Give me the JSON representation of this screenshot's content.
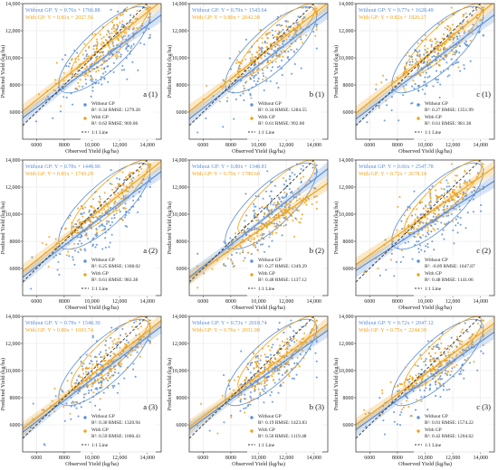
{
  "chart_data": [
    {
      "type": "scatter",
      "id": "a1",
      "panel_label": "a (1)",
      "eq_without": "Without GP: Y = 0.76x + 1766.88",
      "eq_with": "With GP: Y = 0.81x + 2027.56",
      "slope_without": 0.76,
      "intercept_without": 1766.88,
      "slope_with": 0.81,
      "intercept_with": 2027.56,
      "legend": {
        "without_label": "Without GP",
        "without_stats": "R²: 0.34  RMSE: 1279.28",
        "with_label": "With GP",
        "with_stats": "R²: 0.62  RMSE: 969.06",
        "line_label": "1:1 Line"
      },
      "xlabel": "Observed Yield (kg/ha)",
      "ylabel": "Predicted Yield (kg/ha)"
    },
    {
      "type": "scatter",
      "id": "b1",
      "panel_label": "b (1)",
      "eq_without": "Without GP: Y = 0.79x + 1543.64",
      "eq_with": "With GP: Y = 0.80x + 2042.38",
      "slope_without": 0.79,
      "intercept_without": 1543.64,
      "slope_with": 0.8,
      "intercept_with": 2042.38,
      "legend": {
        "without_label": "Without GP",
        "without_stats": "R²: 0.34  RMSE: 1284.55",
        "with_label": "With GP",
        "with_stats": "R²: 0.61  RMSE: 992.00",
        "line_label": "1:1 Line"
      },
      "xlabel": "Observed Yield (kg/ha)",
      "ylabel": "Predicted Yield (kg/ha)"
    },
    {
      "type": "scatter",
      "id": "c1",
      "panel_label": "c (1)",
      "eq_without": "Without GP: Y = 0.77x + 1628.49",
      "eq_with": "With GP: Y = 0.82x + 1820.27",
      "slope_without": 0.77,
      "intercept_without": 1628.49,
      "slope_with": 0.82,
      "intercept_with": 1820.27,
      "legend": {
        "without_label": "Without GP",
        "without_stats": "R²: 0.27  RMSE: 1351.99",
        "with_label": "With GP",
        "with_stats": "R²: 0.61  RMSE: 981.38",
        "line_label": "1:1 Line"
      },
      "xlabel": "Observed Yield (kg/ha)",
      "ylabel": "Predicted Yield (kg/ha)"
    },
    {
      "type": "scatter",
      "id": "a2",
      "panel_label": "a (2)",
      "eq_without": "Without GP: Y = 0.78x + 1449.96",
      "eq_with": "With GP: Y = 0.81x + 1743.29",
      "slope_without": 0.78,
      "intercept_without": 1449.96,
      "slope_with": 0.81,
      "intercept_with": 1743.29,
      "legend": {
        "without_label": "Without GP",
        "without_stats": "R²: 0.25  RMSE: 1368.02",
        "with_label": "With GP",
        "with_stats": "R²: 0.61  RMSE: 983.38",
        "line_label": "1:1 Line"
      },
      "xlabel": "Observed Yield (kg/ha)",
      "ylabel": "Predicted Yield (kg/ha)"
    },
    {
      "type": "scatter",
      "id": "b2",
      "panel_label": "b (2)",
      "eq_without": "Without GP: Y = 0.80x + 1348.81",
      "eq_with": "With GP: Y = 0.70x + 1780.60",
      "slope_without": 0.8,
      "intercept_without": 1348.81,
      "slope_with": 0.7,
      "intercept_with": 1780.6,
      "legend": {
        "without_label": "Without GP",
        "without_stats": "R²: 0.27  RMSE: 1349.29",
        "with_label": "With GP",
        "with_stats": "R²: 0.48  RMSE: 1137.12",
        "line_label": "1:1 Line"
      },
      "xlabel": "Observed Yield (kg/ha)",
      "ylabel": "Predicted Yield (kg/ha)"
    },
    {
      "type": "scatter",
      "id": "c2",
      "panel_label": "c (2)",
      "eq_without": "Without GP: Y = 0.66x + 2547.78",
      "eq_with": "With GP: Y = 0.72x + 2678.14",
      "slope_without": 0.66,
      "intercept_without": 2547.78,
      "slope_with": 0.72,
      "intercept_with": 2678.14,
      "legend": {
        "without_label": "Without GP",
        "without_stats": "R²: -0.09  RMSE: 1647.87",
        "with_label": "With GP",
        "with_stats": "R²: 0.48  RMSE: 1141.06",
        "line_label": "1:1 Line"
      },
      "xlabel": "Observed Yield (kg/ha)",
      "ylabel": "Predicted Yield (kg/ha)"
    },
    {
      "type": "scatter",
      "id": "a3",
      "panel_label": "a (3)",
      "eq_without": "Without GP: Y = 0.78x + 1548.30",
      "eq_with": "With GP: Y = 0.80x + 1693.74",
      "slope_without": 0.78,
      "intercept_without": 1548.3,
      "slope_with": 0.8,
      "intercept_with": 1693.74,
      "legend": {
        "without_label": "Without GP",
        "without_stats": "R²: 0.30  RMSE: 1320.94",
        "with_label": "With GP",
        "with_stats": "R²: 0.59  RMSE: 1006.43",
        "line_label": "1:1 Line"
      },
      "xlabel": "Observed Yield (kg/ha)",
      "ylabel": "Predicted Yield (kg/ha)"
    },
    {
      "type": "scatter",
      "id": "b3",
      "panel_label": "b (3)",
      "eq_without": "Without GP: Y = 0.73x + 2018.74",
      "eq_with": "With GP: Y = 0.76x + 2051.98",
      "slope_without": 0.73,
      "intercept_without": 2018.74,
      "slope_with": 0.76,
      "intercept_with": 2051.98,
      "legend": {
        "without_label": "Without GP",
        "without_stats": "R²: 0.19  RMSE: 1423.83",
        "with_label": "With GP",
        "with_stats": "R²: 0.50  RMSE: 1119.48",
        "line_label": "1:1 Line"
      },
      "xlabel": "Observed Yield (kg/ha)",
      "ylabel": "Predicted Yield (kg/ha)"
    },
    {
      "type": "scatter",
      "id": "c3",
      "panel_label": "c (3)",
      "eq_without": "Without GP: Y = 0.72x + 2047.12",
      "eq_with": "With GP: Y = 0.75x + 2244.39",
      "slope_without": 0.72,
      "intercept_without": 2047.12,
      "slope_with": 0.75,
      "intercept_with": 2244.39,
      "legend": {
        "without_label": "Without GP",
        "without_stats": "R²: 0.01  RMSE: 1574.22",
        "with_label": "With GP",
        "with_stats": "R²: 0.42  RMSE: 1204.62",
        "line_label": "1:1 Line"
      },
      "xlabel": "Observed Yield (kg/ha)",
      "ylabel": "Predicted Yield (kg/ha)"
    }
  ],
  "axes": {
    "xlim": [
      5000,
      15000
    ],
    "ylim": [
      4000,
      14000
    ],
    "x_ticks": [
      6000,
      8000,
      10000,
      12000,
      14000
    ],
    "x_tick_labels": [
      "6000",
      "8000",
      "10,000",
      "12,000",
      "14,000"
    ],
    "y_ticks": [
      6000,
      8000,
      10000,
      12000,
      14000
    ],
    "y_tick_labels": [
      "6000",
      "8000",
      "10,000",
      "12,000",
      "14,000"
    ],
    "grid": true
  },
  "colors": {
    "without_gp": "#5b8fd6",
    "with_gp": "#f0a21c",
    "one_to_one": "#333333"
  }
}
